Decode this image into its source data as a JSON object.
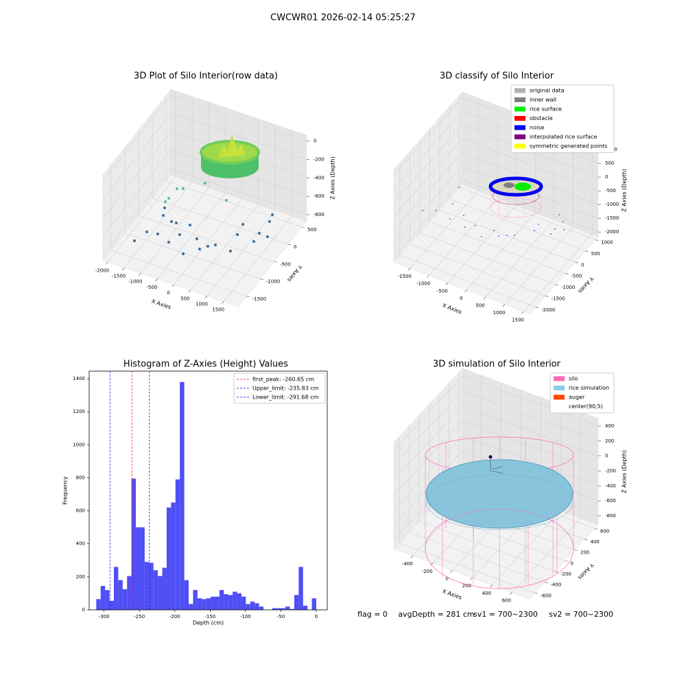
{
  "title": "CWCWR01 2026-02-14 05:25:27",
  "status": [
    "flag = 0",
    "avgDepth = 281 cm",
    "sv1 = 700~2300",
    "sv2 = 700~2300"
  ],
  "chart_data": [
    {
      "type": "scatter3d",
      "title": "3D Plot of Silo Interior(row data)",
      "xlabel": "X Axies",
      "ylabel": "Y Axies",
      "zlabel": "Z Axies (Depth)",
      "xlim": [
        -2143,
        1951
      ],
      "xticks": [
        -2000,
        -1500,
        -1000,
        -500,
        0,
        500,
        1000,
        1500
      ],
      "ylim": [
        -1796,
        673
      ],
      "yticks": [
        -1500,
        -1000,
        -500,
        0,
        500
      ],
      "zlim": [
        -867,
        65
      ],
      "zticks": [
        -800,
        -600,
        -400,
        -200,
        0
      ]
    },
    {
      "type": "scatter3d",
      "title": "3D classify of Silo Interior",
      "xlabel": "X Axies",
      "ylabel": "Y Axies",
      "zlabel": "Z Axies (Depth)",
      "xlim": [
        -1931,
        1662
      ],
      "xticks": [
        -1500,
        -1000,
        -500,
        0,
        500,
        1000,
        1500
      ],
      "ylim": [
        -2310,
        1138
      ],
      "yticks": [
        -2000,
        -1500,
        -1000,
        -500,
        0,
        500,
        1000
      ],
      "zlim": [
        -2169,
        1202
      ],
      "zticks": [
        -2000,
        -1500,
        -1000,
        -500,
        0,
        500,
        1000
      ],
      "legend": [
        {
          "name": "original data",
          "color": "#b0b0b0"
        },
        {
          "name": "inner wall",
          "color": "#808080"
        },
        {
          "name": "rice surface",
          "color": "#00ee00"
        },
        {
          "name": "obstacle",
          "color": "#ff0000"
        },
        {
          "name": "noise",
          "color": "#0000ee"
        },
        {
          "name": "interpolated rice surface",
          "color": "#800080"
        },
        {
          "name": "symmetric generated points",
          "color": "#ffff00"
        }
      ]
    },
    {
      "type": "histogram",
      "title": "Histogram of Z-Axies (Height) Values",
      "xlabel": "Depth (cm)",
      "ylabel": "Frequency",
      "color": "#4f4ff5",
      "bins": [
        -311,
        -304.78,
        -298.56,
        -292.34,
        -286.12,
        -279.9,
        -273.68,
        -267.46,
        -261.24,
        -255.02,
        -248.8,
        -242.58,
        -236.36,
        -230.14,
        -223.92,
        -217.7,
        -211.48,
        -205.26,
        -199.04,
        -192.82,
        -186.6,
        -180.38,
        -174.16,
        -167.94,
        -161.72,
        -155.5,
        -149.28,
        -143.06,
        -136.84,
        -130.62,
        -124.4,
        -118.18,
        -111.96,
        -105.74,
        -99.52,
        -93.3,
        -87.08,
        -80.86,
        -74.64,
        -68.42,
        -62.2,
        -55.98,
        -49.76,
        -43.54,
        -37.32,
        -31.1,
        -24.88,
        -18.66,
        -12.44,
        -6.22,
        0
      ],
      "values": [
        65,
        145,
        120,
        55,
        260,
        180,
        125,
        205,
        795,
        500,
        500,
        290,
        285,
        240,
        205,
        255,
        620,
        650,
        790,
        1380,
        180,
        35,
        120,
        70,
        65,
        70,
        80,
        80,
        120,
        95,
        90,
        110,
        100,
        80,
        35,
        50,
        40,
        20,
        0,
        0,
        10,
        10,
        10,
        20,
        5,
        90,
        260,
        25,
        0,
        70
      ],
      "vlines": [
        {
          "name": "first_peak: -260.65 cm",
          "value": -260.65,
          "color": "#ff0000"
        },
        {
          "name": "Upper_limit: -235.83 cm",
          "value": -235.83,
          "color": "#0000ff"
        },
        {
          "name": "Lower_limit: -291.68 cm",
          "value": -291.68,
          "color": "#0000ff"
        }
      ],
      "xlim": [
        -321,
        15.5
      ],
      "xticks": [
        -300,
        -250,
        -200,
        -150,
        -100,
        -50,
        0
      ],
      "ylim": [
        0,
        1446
      ],
      "yticks": [
        0,
        200,
        400,
        600,
        800,
        1000,
        1200,
        1400
      ]
    },
    {
      "type": "scatter3d",
      "title": "3D simulation of Silo Interior",
      "xlabel": "X Axies",
      "ylabel": "Y Axies",
      "zlabel": "Z Axies (Depth)",
      "xlim": [
        -592,
        778
      ],
      "xticks": [
        -400,
        -200,
        0,
        200,
        400,
        600
      ],
      "ylim": [
        -710,
        669
      ],
      "yticks": [
        -600,
        -400,
        -200,
        0,
        200,
        400,
        600
      ],
      "zlim": [
        -919,
        501
      ],
      "zticks": [
        -800,
        -600,
        -400,
        -200,
        0,
        200,
        400
      ],
      "legend": [
        {
          "name": "silo",
          "color": "#ff69b4"
        },
        {
          "name": "rice simulation",
          "color": "#87ceeb"
        },
        {
          "name": "auger",
          "color": "#ff4500"
        },
        {
          "name": "center(90,5)",
          "color": "#ffffff"
        }
      ]
    }
  ]
}
